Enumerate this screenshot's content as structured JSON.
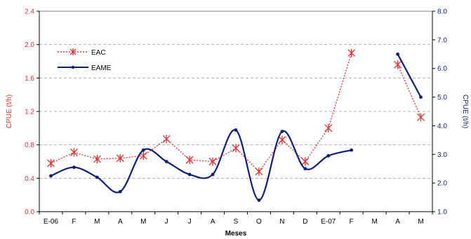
{
  "chart_data": {
    "type": "line",
    "xlabel": "Meses",
    "ylabel_left": "CPUE (t/h)",
    "ylabel_right": "CPUE (t/h)",
    "categories": [
      "E-06",
      "F",
      "M",
      "A",
      "M",
      "J",
      "J",
      "A",
      "S",
      "O",
      "N",
      "D",
      "E-07",
      "F",
      "M",
      "A",
      "M"
    ],
    "y_left": {
      "min": 0.0,
      "max": 2.4,
      "step": 0.4,
      "tick_labels": [
        "0.0",
        "0.4",
        "0.8",
        "1.2",
        "1.6",
        "2.0",
        "2.4"
      ]
    },
    "y_right": {
      "min": 1.0,
      "max": 8.0,
      "step": 1.0,
      "tick_labels": [
        "1.0",
        "2.0",
        "3.0",
        "4.0",
        "5.0",
        "6.0",
        "7.0",
        "8.0"
      ]
    },
    "grid": true,
    "legend_position": "top-left",
    "series": [
      {
        "name": "EAC",
        "axis": "left",
        "color": "#e8312f",
        "style": "dotted",
        "marker": "star",
        "values": [
          0.58,
          0.71,
          0.63,
          0.64,
          0.67,
          0.87,
          0.62,
          0.6,
          0.76,
          0.48,
          0.86,
          0.6,
          1.0,
          1.9,
          null,
          1.76,
          1.13
        ]
      },
      {
        "name": "EAME",
        "axis": "right",
        "color": "#0f1f78",
        "style": "solid",
        "marker": "dot",
        "values": [
          2.25,
          2.55,
          2.2,
          1.7,
          3.15,
          2.75,
          2.3,
          2.3,
          3.85,
          1.4,
          3.8,
          2.5,
          2.95,
          3.15,
          null,
          6.5,
          5.0
        ]
      }
    ]
  }
}
